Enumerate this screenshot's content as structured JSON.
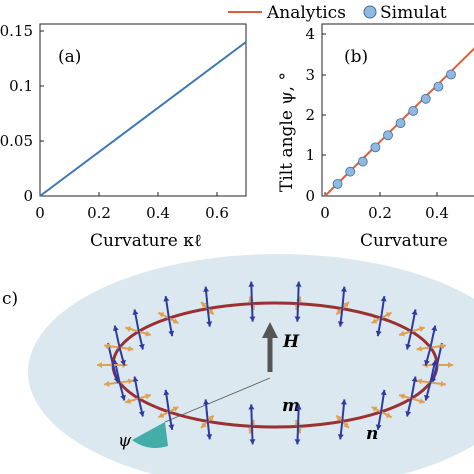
{
  "panels": [
    {
      "id": "a",
      "label": "(a)",
      "xlabel": "Curvature κℓ",
      "ylabel": "",
      "xticks": [
        "0",
        "0.2",
        "0.4",
        "0.6"
      ],
      "yticks": [
        "0",
        "0.05",
        "0.1",
        "0.15"
      ],
      "ytick_values": [
        0,
        0.05,
        0.1,
        0.15
      ]
    },
    {
      "id": "b",
      "label": "(b)",
      "xlabel": "Curvature",
      "ylabel": "Tilt angle ψ, °",
      "xticks": [
        "0",
        "0.2",
        "0.4"
      ],
      "yticks": [
        "0",
        "1",
        "2",
        "3",
        "4"
      ]
    },
    {
      "id": "c",
      "label": "c)",
      "annotations": {
        "field": "H",
        "m": "m",
        "n": "n",
        "psi": "ψ"
      }
    }
  ],
  "legend": {
    "analytics": "Analytics",
    "simulation": "Simulat"
  },
  "colors": {
    "analytics_line": "#d9603b",
    "line_a": "#3a78b5",
    "marker": "#8fb9e0",
    "marker_edge": "#3f6f9e",
    "ring": "#9a3030",
    "disk": "#dbe8f0",
    "arrow_orange": "#e0a050",
    "arrow_blue": "#2f3aa0",
    "wedge": "#2aa29a"
  },
  "chart_data": [
    {
      "type": "line",
      "panel": "a",
      "x": [
        0,
        0.7
      ],
      "y": [
        0,
        0.14
      ],
      "xlabel": "Curvature κℓ",
      "xlim": [
        0,
        0.7
      ],
      "ylim": [
        0,
        0.15
      ]
    },
    {
      "type": "line",
      "panel": "b",
      "xlabel": "Curvature",
      "ylabel": "Tilt angle ψ, °",
      "xlim": [
        0,
        0.6
      ],
      "ylim": [
        0,
        4.2
      ],
      "series": [
        {
          "name": "Analytics",
          "x": [
            0,
            0.6
          ],
          "y": [
            0,
            4.1
          ]
        },
        {
          "name": "Simulat",
          "x": [
            0.045,
            0.09,
            0.135,
            0.18,
            0.225,
            0.27,
            0.315,
            0.36,
            0.405,
            0.45
          ],
          "y": [
            0.3,
            0.6,
            0.85,
            1.2,
            1.5,
            1.8,
            2.1,
            2.4,
            2.7,
            3.0
          ]
        }
      ]
    }
  ]
}
